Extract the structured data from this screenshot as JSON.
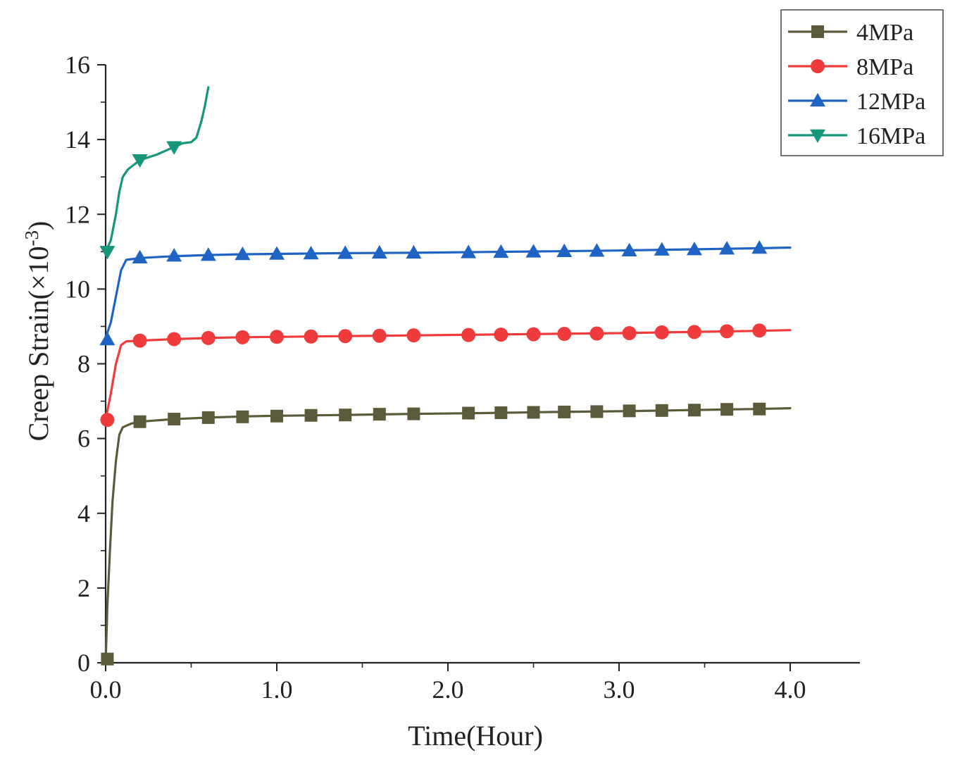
{
  "chart_data": {
    "type": "line",
    "title": "",
    "xlabel": "Time(Hour)",
    "ylabel_main": "Creep Strain(×10",
    "ylabel_sup": "-3",
    "ylabel_close": ")",
    "xlim": [
      0,
      4.4
    ],
    "ylim": [
      0,
      16
    ],
    "xticks": [
      0,
      1,
      2,
      3,
      4
    ],
    "xtick_labels": [
      "0.0",
      "1.0",
      "2.0",
      "3.0",
      "4.0"
    ],
    "yticks": [
      0,
      2,
      4,
      6,
      8,
      10,
      12,
      14,
      16
    ],
    "ytick_labels": [
      "0",
      "2",
      "4",
      "6",
      "8",
      "10",
      "12",
      "14",
      "16"
    ],
    "grid": false,
    "legend_position": "top-right",
    "series": [
      {
        "name": "4MPa",
        "color": "#5b5b3b",
        "marker": "square",
        "line": [
          [
            0,
            0
          ],
          [
            0.01,
            1.5
          ],
          [
            0.025,
            3.0
          ],
          [
            0.04,
            4.3
          ],
          [
            0.06,
            5.4
          ],
          [
            0.08,
            6.1
          ],
          [
            0.1,
            6.3
          ],
          [
            0.15,
            6.4
          ],
          [
            0.2,
            6.45
          ],
          [
            0.4,
            6.52
          ],
          [
            0.6,
            6.56
          ],
          [
            0.8,
            6.59
          ],
          [
            1.0,
            6.61
          ],
          [
            1.4,
            6.63
          ],
          [
            1.8,
            6.66
          ],
          [
            2.2,
            6.68
          ],
          [
            2.6,
            6.71
          ],
          [
            3.0,
            6.73
          ],
          [
            3.4,
            6.76
          ],
          [
            3.8,
            6.79
          ],
          [
            4.0,
            6.81
          ]
        ],
        "markers": [
          [
            0.01,
            0.1
          ],
          [
            0.2,
            6.45
          ],
          [
            0.4,
            6.52
          ],
          [
            0.6,
            6.56
          ],
          [
            0.8,
            6.58
          ],
          [
            1.0,
            6.6
          ],
          [
            1.2,
            6.62
          ],
          [
            1.4,
            6.63
          ],
          [
            1.6,
            6.65
          ],
          [
            1.8,
            6.66
          ],
          [
            2.12,
            6.68
          ],
          [
            2.31,
            6.69
          ],
          [
            2.5,
            6.7
          ],
          [
            2.68,
            6.71
          ],
          [
            2.87,
            6.72
          ],
          [
            3.06,
            6.74
          ],
          [
            3.25,
            6.75
          ],
          [
            3.44,
            6.76
          ],
          [
            3.63,
            6.78
          ],
          [
            3.82,
            6.79
          ]
        ]
      },
      {
        "name": "8MPa",
        "color": "#ef3b3b",
        "marker": "circle",
        "line": [
          [
            0,
            6.5
          ],
          [
            0.03,
            7.2
          ],
          [
            0.06,
            8.0
          ],
          [
            0.09,
            8.5
          ],
          [
            0.12,
            8.6
          ],
          [
            0.2,
            8.62
          ],
          [
            0.4,
            8.66
          ],
          [
            0.6,
            8.69
          ],
          [
            0.8,
            8.71
          ],
          [
            1.0,
            8.72
          ],
          [
            1.4,
            8.74
          ],
          [
            1.8,
            8.76
          ],
          [
            2.2,
            8.78
          ],
          [
            2.6,
            8.8
          ],
          [
            3.0,
            8.82
          ],
          [
            3.4,
            8.85
          ],
          [
            3.8,
            8.88
          ],
          [
            4.0,
            8.9
          ]
        ],
        "markers": [
          [
            0.01,
            6.5
          ],
          [
            0.2,
            8.62
          ],
          [
            0.4,
            8.66
          ],
          [
            0.6,
            8.69
          ],
          [
            0.8,
            8.71
          ],
          [
            1.0,
            8.72
          ],
          [
            1.2,
            8.73
          ],
          [
            1.4,
            8.74
          ],
          [
            1.6,
            8.75
          ],
          [
            1.8,
            8.76
          ],
          [
            2.12,
            8.77
          ],
          [
            2.31,
            8.78
          ],
          [
            2.5,
            8.79
          ],
          [
            2.68,
            8.8
          ],
          [
            2.87,
            8.81
          ],
          [
            3.06,
            8.82
          ],
          [
            3.25,
            8.84
          ],
          [
            3.44,
            8.85
          ],
          [
            3.63,
            8.87
          ],
          [
            3.82,
            8.89
          ]
        ]
      },
      {
        "name": "12MPa",
        "color": "#1f63c4",
        "marker": "triangle-up",
        "line": [
          [
            0,
            8.7
          ],
          [
            0.03,
            9.1
          ],
          [
            0.06,
            9.8
          ],
          [
            0.09,
            10.5
          ],
          [
            0.12,
            10.78
          ],
          [
            0.2,
            10.83
          ],
          [
            0.4,
            10.88
          ],
          [
            0.6,
            10.91
          ],
          [
            0.8,
            10.93
          ],
          [
            1.0,
            10.94
          ],
          [
            1.4,
            10.96
          ],
          [
            1.8,
            10.97
          ],
          [
            2.2,
            10.99
          ],
          [
            2.6,
            11.01
          ],
          [
            3.0,
            11.03
          ],
          [
            3.4,
            11.06
          ],
          [
            3.8,
            11.09
          ],
          [
            4.0,
            11.11
          ]
        ],
        "markers": [
          [
            0.01,
            8.65
          ],
          [
            0.2,
            10.84
          ],
          [
            0.4,
            10.89
          ],
          [
            0.6,
            10.91
          ],
          [
            0.8,
            10.93
          ],
          [
            1.0,
            10.94
          ],
          [
            1.2,
            10.95
          ],
          [
            1.4,
            10.96
          ],
          [
            1.6,
            10.97
          ],
          [
            1.8,
            10.97
          ],
          [
            2.12,
            10.98
          ],
          [
            2.31,
            10.99
          ],
          [
            2.5,
            11.0
          ],
          [
            2.68,
            11.01
          ],
          [
            2.87,
            11.02
          ],
          [
            3.06,
            11.03
          ],
          [
            3.25,
            11.05
          ],
          [
            3.44,
            11.06
          ],
          [
            3.63,
            11.08
          ],
          [
            3.82,
            11.1
          ]
        ]
      },
      {
        "name": "16MPa",
        "color": "#16967a",
        "marker": "triangle-down",
        "line": [
          [
            0,
            11.0
          ],
          [
            0.03,
            11.3
          ],
          [
            0.06,
            12.0
          ],
          [
            0.08,
            12.6
          ],
          [
            0.1,
            13.0
          ],
          [
            0.13,
            13.2
          ],
          [
            0.2,
            13.45
          ],
          [
            0.3,
            13.6
          ],
          [
            0.4,
            13.8
          ],
          [
            0.45,
            13.9
          ],
          [
            0.5,
            13.93
          ],
          [
            0.53,
            14.05
          ],
          [
            0.56,
            14.5
          ],
          [
            0.58,
            14.9
          ],
          [
            0.6,
            15.4
          ]
        ],
        "markers": [
          [
            0.01,
            11.0
          ],
          [
            0.2,
            13.45
          ],
          [
            0.4,
            13.8
          ]
        ]
      }
    ]
  }
}
